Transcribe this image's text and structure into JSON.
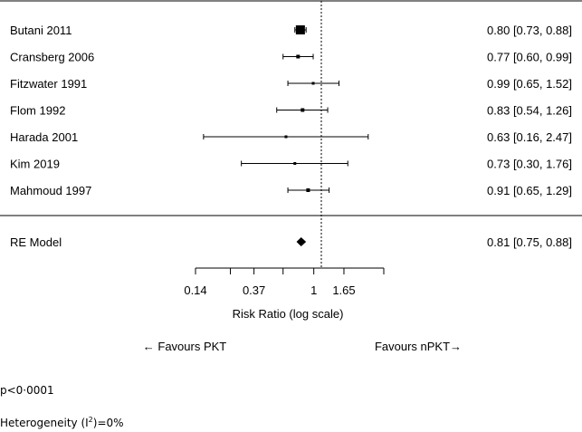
{
  "chart_data": {
    "type": "forest",
    "xlabel": "Risk Ratio (log scale)",
    "scale": "log",
    "xlim": [
      0.14,
      3.2
    ],
    "ticks": [
      0.14,
      0.25,
      0.37,
      0.6,
      1,
      1.65
    ],
    "tick_labels": [
      "0.14",
      "",
      "0.37",
      "",
      "1",
      "1.65"
    ],
    "reference_line": 1,
    "studies": [
      {
        "label": "Butani 2011",
        "rr": 0.8,
        "lo": 0.73,
        "hi": 0.88,
        "text": "0.80 [0.73, 0.88]"
      },
      {
        "label": "Cransberg 2006",
        "rr": 0.77,
        "lo": 0.6,
        "hi": 0.99,
        "text": "0.77 [0.60, 0.99]"
      },
      {
        "label": "Fitzwater 1991",
        "rr": 0.99,
        "lo": 0.65,
        "hi": 1.52,
        "text": "0.99 [0.65, 1.52]"
      },
      {
        "label": "Flom 1992",
        "rr": 0.83,
        "lo": 0.54,
        "hi": 1.26,
        "text": "0.83 [0.54, 1.26]"
      },
      {
        "label": "Harada 2001",
        "rr": 0.63,
        "lo": 0.16,
        "hi": 2.47,
        "text": "0.63 [0.16, 2.47]"
      },
      {
        "label": "Kim 2019",
        "rr": 0.73,
        "lo": 0.3,
        "hi": 1.76,
        "text": "0.73 [0.30, 1.76]"
      },
      {
        "label": "Mahmoud 1997",
        "rr": 0.91,
        "lo": 0.65,
        "hi": 1.29,
        "text": "0.91 [0.65, 1.29]"
      }
    ],
    "summary": {
      "label": "RE Model",
      "rr": 0.81,
      "lo": 0.75,
      "hi": 0.88,
      "text": "0.81 [0.75, 0.88]"
    },
    "favours_left": "← Favours PKT",
    "favours_right": "Favours nPKT→"
  },
  "footer": {
    "p_value": "p<0·0001",
    "heterogeneity_prefix": "Heterogeneity (I",
    "heterogeneity_sup": "2",
    "heterogeneity_suffix": ")=0%"
  }
}
